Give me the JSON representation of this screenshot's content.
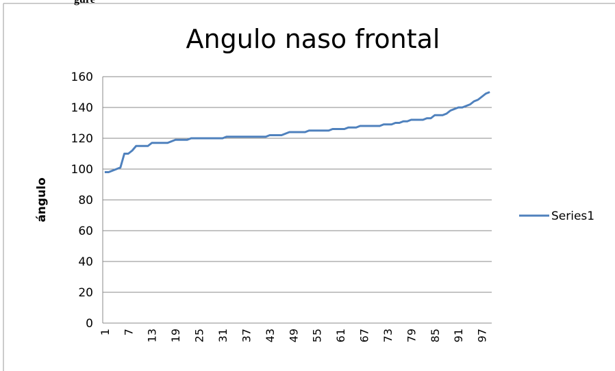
{
  "caption": "gure",
  "chart_data": {
    "type": "line",
    "title": "Angulo naso frontal",
    "y_label": "ángulo",
    "categories": [
      1,
      null,
      null,
      null,
      null,
      null,
      7,
      null,
      null,
      null,
      null,
      null,
      13,
      null,
      null,
      null,
      null,
      null,
      19,
      null,
      null,
      null,
      null,
      null,
      25,
      null,
      null,
      null,
      null,
      null,
      31,
      null,
      null,
      null,
      null,
      null,
      37,
      null,
      null,
      null,
      null,
      null,
      43,
      null,
      null,
      null,
      null,
      null,
      49,
      null,
      null,
      null,
      null,
      null,
      55,
      null,
      null,
      null,
      null,
      null,
      61,
      null,
      null,
      null,
      null,
      null,
      67,
      null,
      null,
      null,
      null,
      null,
      73,
      null,
      null,
      null,
      null,
      null,
      79,
      null,
      null,
      null,
      null,
      null,
      85,
      null,
      null,
      null,
      null,
      null,
      91,
      null,
      null,
      null,
      null,
      null,
      97,
      null,
      null
    ],
    "series": [
      {
        "name": "Series1",
        "color": "#4f81bd",
        "values": [
          98,
          98,
          99,
          100,
          101,
          110,
          110,
          112,
          115,
          115,
          115,
          115,
          117,
          117,
          117,
          117,
          117,
          118,
          119,
          119,
          119,
          119,
          120,
          120,
          120,
          120,
          120,
          120,
          120,
          120,
          120,
          121,
          121,
          121,
          121,
          121,
          121,
          121,
          121,
          121,
          121,
          121,
          122,
          122,
          122,
          122,
          123,
          124,
          124,
          124,
          124,
          124,
          125,
          125,
          125,
          125,
          125,
          125,
          126,
          126,
          126,
          126,
          127,
          127,
          127,
          128,
          128,
          128,
          128,
          128,
          128,
          129,
          129,
          129,
          130,
          130,
          131,
          131,
          132,
          132,
          132,
          132,
          133,
          133,
          135,
          135,
          135,
          136,
          138,
          139,
          140,
          140,
          141,
          142,
          144,
          145,
          147,
          149,
          150
        ]
      }
    ],
    "ylim": [
      0,
      160
    ],
    "yticks": [
      0,
      20,
      40,
      60,
      80,
      100,
      120,
      140,
      160
    ],
    "grid": true,
    "legend": "right"
  }
}
